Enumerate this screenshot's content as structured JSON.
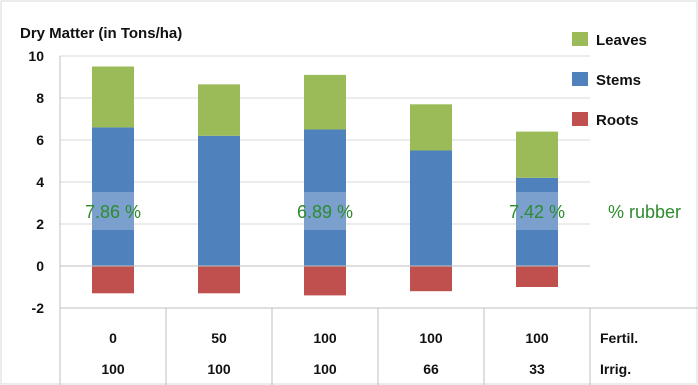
{
  "chart_data": {
    "type": "bar",
    "stacked": true,
    "title": "Dry Matter  (in Tons/ha)",
    "ylim": [
      -2,
      10
    ],
    "y_ticks": [
      "10",
      "8",
      "6",
      "4",
      "2",
      "0",
      "-2"
    ],
    "y_tick_values": [
      10,
      8,
      6,
      4,
      2,
      0,
      -2
    ],
    "grid": true,
    "legend_position": "right",
    "categories": [
      {
        "fertil": "0",
        "irrig": "100"
      },
      {
        "fertil": "50",
        "irrig": "100"
      },
      {
        "fertil": "100",
        "irrig": "100"
      },
      {
        "fertil": "100",
        "irrig": "66"
      },
      {
        "fertil": "100",
        "irrig": "33"
      }
    ],
    "row_labels": {
      "fertil": "Fertil.",
      "irrig": "Irrig."
    },
    "series": [
      {
        "name": "Stems",
        "color": "#4f81bd",
        "values": [
          6.6,
          6.2,
          6.5,
          5.5,
          4.2
        ]
      },
      {
        "name": "Leaves",
        "color": "#9bbb59",
        "values": [
          2.9,
          2.45,
          2.6,
          2.2,
          2.2
        ]
      },
      {
        "name": "Roots",
        "color": "#c0504d",
        "values": [
          -1.3,
          -1.3,
          -1.4,
          -1.2,
          -1.0
        ]
      }
    ],
    "legend_order": [
      "Leaves",
      "Stems",
      "Roots"
    ],
    "annotations": {
      "rubber_values": [
        "7.86 %",
        "",
        "6.89 %",
        "",
        "7.42 %"
      ],
      "rubber_label": "% rubber",
      "color": "#2e8b2e"
    }
  }
}
